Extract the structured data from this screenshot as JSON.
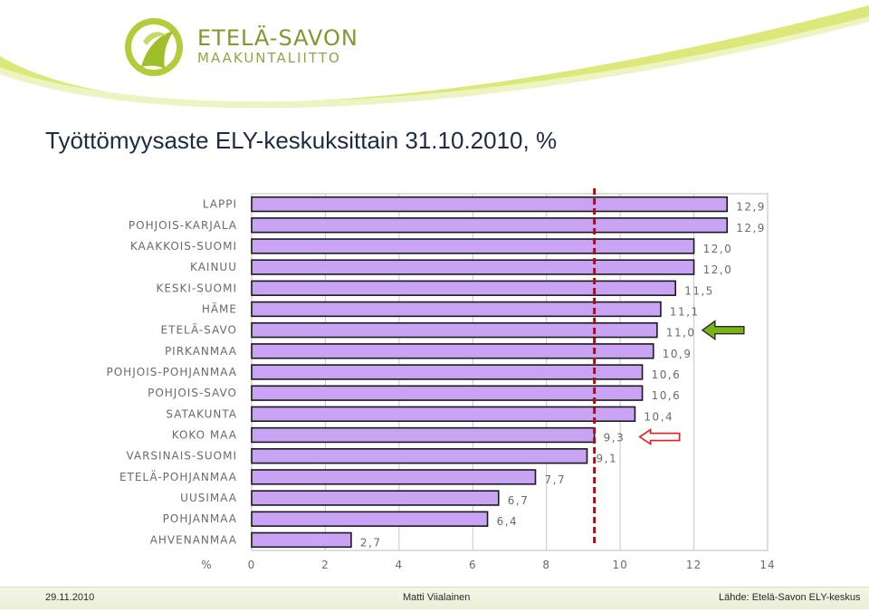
{
  "logo": {
    "line1": "ETELÄ-SAVON",
    "line2": "MAAKUNTALIITTO",
    "icon": "maakuntaliitto-logo-icon"
  },
  "colors": {
    "bar": "#c9a4f5",
    "bar_edge": "#1a1a1a",
    "reference_line": "#cc0000",
    "green_arrow": "#7ab317",
    "red_arrow": "#e02020",
    "brand": "#7d9a2f"
  },
  "header": {
    "title": "Työttömyysaste ELY-keskuksittain 31.10.2010, %"
  },
  "chart_data": {
    "type": "bar",
    "orientation": "horizontal",
    "categories": [
      "LAPPI",
      "POHJOIS-KARJALA",
      "KAAKKOIS-SUOMI",
      "KAINUU",
      "KESKI-SUOMI",
      "HÄME",
      "ETELÄ-SAVO",
      "PIRKANMAA",
      "POHJOIS-POHJANMAA",
      "POHJOIS-SAVO",
      "SATAKUNTA",
      "KOKO MAA",
      "VARSINAIS-SUOMI",
      "ETELÄ-POHJANMAA",
      "UUSIMAA",
      "POHJANMAA",
      "AHVENANMAA"
    ],
    "values": [
      12.9,
      12.9,
      12.0,
      12.0,
      11.5,
      11.1,
      11.0,
      10.9,
      10.6,
      10.6,
      10.4,
      9.3,
      9.1,
      7.7,
      6.7,
      6.4,
      2.7
    ],
    "data_labels": [
      "12,9",
      "12,9",
      "12,0",
      "12,0",
      "11,5",
      "11,1",
      "11,0",
      "10,9",
      "10,6",
      "10,6",
      "10,4",
      "9,3",
      "9,1",
      "7,7",
      "6,7",
      "6,4",
      "2,7"
    ],
    "x_ticks": [
      0,
      2,
      4,
      6,
      8,
      10,
      12,
      14
    ],
    "xlim": [
      0,
      14
    ],
    "xlabel": "%",
    "reference_value": 9.3,
    "grid": "vertical",
    "highlight_arrows": [
      {
        "category": "ETELÄ-SAVO",
        "style": "filled-green",
        "icon": "green-arrow-icon"
      },
      {
        "category": "KOKO MAA",
        "style": "outline-red",
        "icon": "red-arrow-icon"
      }
    ]
  },
  "footer": {
    "date": "29.11.2010",
    "author": "Matti Viialainen",
    "source": "Lähde: Etelä-Savon ELY-keskus"
  }
}
